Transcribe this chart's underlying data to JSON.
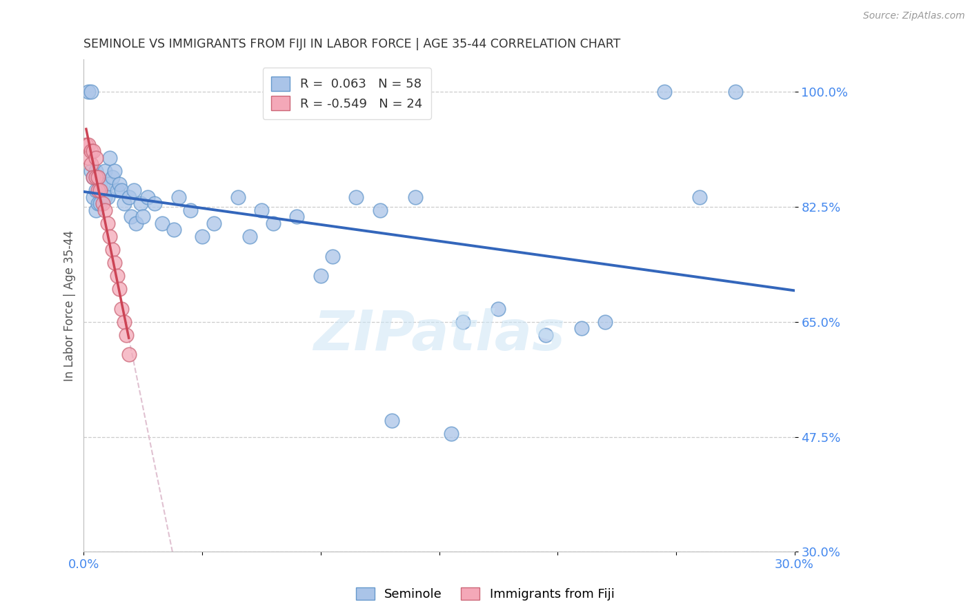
{
  "title": "SEMINOLE VS IMMIGRANTS FROM FIJI IN LABOR FORCE | AGE 35-44 CORRELATION CHART",
  "source": "Source: ZipAtlas.com",
  "ylabel": "In Labor Force | Age 35-44",
  "xlim": [
    0.0,
    0.3
  ],
  "ylim": [
    0.3,
    1.05
  ],
  "yticks": [
    0.3,
    0.475,
    0.65,
    0.825,
    1.0
  ],
  "ytick_labels": [
    "30.0%",
    "47.5%",
    "65.0%",
    "82.5%",
    "100.0%"
  ],
  "R_seminole": 0.063,
  "N_seminole": 58,
  "R_fiji": -0.549,
  "N_fiji": 24,
  "seminole_color": "#aac4e8",
  "fiji_color": "#f4a8b8",
  "seminole_edge_color": "#6699cc",
  "fiji_edge_color": "#cc6677",
  "seminole_line_color": "#3366bb",
  "fiji_line_color": "#cc4455",
  "regression_ext_color": "#ddbbcc",
  "grid_color": "#cccccc",
  "tick_label_color": "#4488ee",
  "title_color": "#333333",
  "seminole_x": [
    0.002,
    0.003,
    0.003,
    0.004,
    0.004,
    0.005,
    0.005,
    0.005,
    0.006,
    0.006,
    0.007,
    0.007,
    0.008,
    0.009,
    0.009,
    0.01,
    0.01,
    0.011,
    0.012,
    0.013,
    0.014,
    0.015,
    0.016,
    0.017,
    0.019,
    0.02,
    0.021,
    0.022,
    0.024,
    0.025,
    0.027,
    0.03,
    0.033,
    0.038,
    0.04,
    0.045,
    0.05,
    0.055,
    0.065,
    0.07,
    0.075,
    0.08,
    0.09,
    0.1,
    0.105,
    0.115,
    0.125,
    0.14,
    0.16,
    0.175,
    0.195,
    0.21,
    0.22,
    0.245,
    0.26,
    0.275,
    0.13,
    0.155
  ],
  "seminole_y": [
    1.0,
    1.0,
    0.88,
    0.87,
    0.84,
    0.88,
    0.85,
    0.82,
    0.87,
    0.83,
    0.86,
    0.83,
    0.86,
    0.88,
    0.84,
    0.86,
    0.84,
    0.9,
    0.87,
    0.88,
    0.85,
    0.86,
    0.85,
    0.83,
    0.84,
    0.81,
    0.85,
    0.8,
    0.83,
    0.81,
    0.84,
    0.83,
    0.8,
    0.79,
    0.84,
    0.82,
    0.78,
    0.8,
    0.84,
    0.78,
    0.82,
    0.8,
    0.81,
    0.72,
    0.75,
    0.84,
    0.82,
    0.84,
    0.65,
    0.67,
    0.63,
    0.64,
    0.65,
    1.0,
    0.84,
    1.0,
    0.5,
    0.48
  ],
  "fiji_x": [
    0.001,
    0.002,
    0.002,
    0.003,
    0.003,
    0.004,
    0.004,
    0.005,
    0.005,
    0.006,
    0.006,
    0.007,
    0.008,
    0.009,
    0.01,
    0.011,
    0.012,
    0.013,
    0.014,
    0.015,
    0.016,
    0.017,
    0.018,
    0.019
  ],
  "fiji_y": [
    0.92,
    0.92,
    0.9,
    0.91,
    0.89,
    0.91,
    0.87,
    0.9,
    0.87,
    0.87,
    0.85,
    0.85,
    0.83,
    0.82,
    0.8,
    0.78,
    0.76,
    0.74,
    0.72,
    0.7,
    0.67,
    0.65,
    0.63,
    0.6
  ],
  "watermark_text": "ZIPatlas",
  "background_color": "#ffffff"
}
